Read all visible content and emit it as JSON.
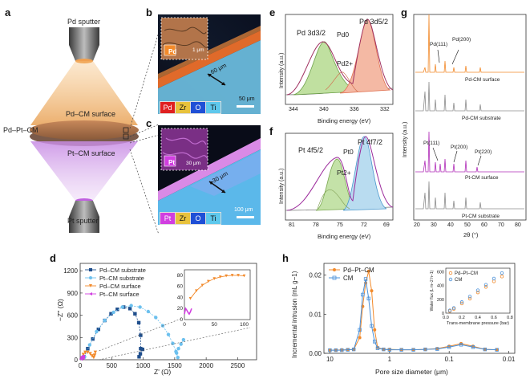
{
  "colors": {
    "pd_orange": "#f28a2b",
    "pt_purple": "#d13ee0",
    "zr_yellow": "#e8c23c",
    "o_blue": "#1f4fd6",
    "ti_cyan": "#5ec8ec",
    "dark_navy": "#1f4e8c",
    "light_blue": "#6cc0ee",
    "pd_xps_green": "#9acf79",
    "pd_xps_red": "#f0a48a",
    "gray": "#8c8c8c"
  },
  "panel_a": {
    "letter": "a",
    "top_label": "Pd sputter",
    "middle_surface_label": "Pd–CM surface",
    "left_label": "Pd–Pt–CM",
    "bottom_surface_label": "Pt–CM surface",
    "bottom_label": "Pt sputter"
  },
  "panel_b": {
    "letter": "b",
    "inset_scale": "1 μm",
    "inset_element": "Pd",
    "thickness": "60 μm",
    "scale": "50 μm",
    "elements": [
      "Pd",
      "Zr",
      "O",
      "Ti"
    ]
  },
  "panel_c": {
    "letter": "c",
    "inset_scale": "30 μm",
    "inset_element": "Pt",
    "thickness": "30 μm",
    "scale": "100 μm",
    "elements": [
      "Pt",
      "Zr",
      "O",
      "Ti"
    ]
  },
  "chart_data": [
    {
      "id": "d",
      "type": "scatter",
      "letter": "d",
      "xlabel": "Z' (Ω)",
      "ylabel": "−Z'' (Ω)",
      "xlim": [
        0,
        2800
      ],
      "ylim": [
        0,
        1300
      ],
      "xticks": [
        0,
        500,
        1000,
        1500,
        2000,
        2500
      ],
      "yticks": [
        0,
        300,
        600,
        900,
        1200
      ],
      "legend": [
        "Pd–CM substrate",
        "Pt–CM substrate",
        "Pd–CM surface",
        "Pt–CM surface"
      ],
      "series": [
        {
          "name": "Pd–CM substrate",
          "color": "#1f4e8c",
          "shape": "square",
          "x": [
            60,
            120,
            200,
            290,
            390,
            490,
            590,
            690,
            790,
            870,
            930,
            960,
            960,
            935,
            955,
            990
          ],
          "y": [
            40,
            150,
            280,
            410,
            530,
            620,
            680,
            710,
            690,
            620,
            500,
            330,
            150,
            40,
            80,
            140
          ]
        },
        {
          "name": "Pt–CM substrate",
          "color": "#6cc0ee",
          "shape": "circle",
          "x": [
            70,
            150,
            260,
            390,
            530,
            670,
            810,
            950,
            1080,
            1200,
            1310,
            1400,
            1470,
            1520,
            1550,
            1530,
            1560,
            1600,
            1640
          ],
          "y": [
            40,
            200,
            380,
            530,
            640,
            710,
            730,
            710,
            650,
            570,
            460,
            340,
            220,
            110,
            30,
            90,
            150,
            210,
            270
          ]
        },
        {
          "name": "Pd–CM surface",
          "color": "#f28a2b",
          "shape": "triangle-down",
          "x": [
            30,
            50,
            80,
            120,
            160,
            190,
            215,
            230,
            240
          ],
          "y": [
            20,
            70,
            100,
            100,
            80,
            50,
            30,
            60,
            100
          ]
        },
        {
          "name": "Pt–CM surface",
          "color": "#d13ee0",
          "shape": "triangle-left",
          "x": [
            10,
            20,
            30,
            40,
            45,
            50
          ],
          "y": [
            10,
            30,
            45,
            35,
            20,
            45
          ]
        }
      ],
      "inset": {
        "xlim": [
          0,
          110
        ],
        "ylim": [
          0,
          90
        ],
        "xticks": [
          0,
          50,
          100
        ],
        "yticks": [
          0,
          20,
          40,
          60,
          80
        ],
        "orange_x": [
          10,
          20,
          30,
          40,
          50,
          60,
          70,
          80,
          90,
          100
        ],
        "orange_y": [
          38,
          52,
          62,
          69,
          74,
          77,
          79,
          80,
          80,
          79
        ],
        "purple_x": [
          0,
          2,
          4,
          6,
          8,
          10,
          12
        ],
        "purple_y": [
          10,
          20,
          17,
          13,
          10,
          14,
          20
        ]
      }
    },
    {
      "id": "e",
      "type": "line",
      "letter": "e",
      "xlabel": "Binding energy (eV)",
      "ylabel": "Intensity (a.u.)",
      "xlim": [
        346,
        332
      ],
      "xticks": [
        344,
        340,
        336,
        332
      ],
      "annotations": [
        "Pd 3d3/2",
        "Pd 3d5/2",
        "Pd0",
        "Pd2+"
      ]
    },
    {
      "id": "f",
      "type": "line",
      "letter": "f",
      "xlabel": "Binding energy (eV)",
      "ylabel": "Intensity (a.u.)",
      "xlim": [
        82,
        69
      ],
      "xticks": [
        81,
        78,
        75,
        72,
        69
      ],
      "annotations": [
        "Pt 4f5/2",
        "Pt 4f7/2",
        "Pt0",
        "Pt2+"
      ]
    },
    {
      "id": "g",
      "type": "line",
      "letter": "g",
      "xlabel": "2θ (°)",
      "ylabel": "Intensity (a.u.)",
      "xlim": [
        18,
        82
      ],
      "xticks": [
        20,
        30,
        40,
        50,
        60,
        70,
        80
      ],
      "traces": [
        "Pd-CM surface",
        "Pd-CM substrate",
        "Pt-CM surface",
        "Pt-CM substrate"
      ],
      "annotations": [
        "Pd(111)",
        "Pd(200)",
        "Pt(111)",
        "Pt(200)",
        "Pt(220)"
      ]
    },
    {
      "id": "h",
      "type": "line",
      "letter": "h",
      "xlabel": "Pore size diameter (μm)",
      "ylabel": "Incremental intrusion (mL g−1)",
      "xscale": "log-reversed",
      "xticks": [
        "10",
        "1",
        "0.1",
        "0.01"
      ],
      "yticks": [
        0.0,
        0.01,
        0.02
      ],
      "ylim": [
        0,
        0.023
      ],
      "legend": [
        "Pd–Pt–CM",
        "CM"
      ],
      "series": [
        {
          "name": "Pd–Pt–CM",
          "color": "#f28a2b",
          "logx": [
            1.0,
            0.9,
            0.8,
            0.7,
            0.6,
            0.5,
            0.45,
            0.4,
            0.35,
            0.3,
            0.25,
            0.2,
            0.1,
            0.0,
            -0.2,
            -0.4,
            -0.6,
            -0.8,
            -1.0,
            -1.2,
            -1.4,
            -1.6,
            -1.8
          ],
          "y": [
            0.0008,
            0.0008,
            0.0009,
            0.0009,
            0.001,
            0.004,
            0.012,
            0.018,
            0.021,
            0.016,
            0.006,
            0.0015,
            0.001,
            0.001,
            0.0009,
            0.0009,
            0.001,
            0.0012,
            0.0018,
            0.0025,
            0.0018,
            0.001,
            0.0009
          ]
        },
        {
          "name": "CM",
          "color": "#4a90d9",
          "logx": [
            1.0,
            0.9,
            0.8,
            0.7,
            0.6,
            0.5,
            0.45,
            0.4,
            0.35,
            0.3,
            0.25,
            0.2,
            0.1,
            0.0,
            -0.2,
            -0.4,
            -0.6,
            -0.8,
            -1.0,
            -1.2,
            -1.4,
            -1.6,
            -1.8
          ],
          "y": [
            0.0008,
            0.0008,
            0.0008,
            0.0009,
            0.001,
            0.006,
            0.015,
            0.019,
            0.014,
            0.007,
            0.003,
            0.0013,
            0.001,
            0.0009,
            0.0009,
            0.0009,
            0.001,
            0.0011,
            0.0016,
            0.0022,
            0.0016,
            0.001,
            0.0009
          ]
        }
      ],
      "inset": {
        "xlabel": "Trans-membrane pressure (bar)",
        "ylabel": "Water flux (L m−2 h−1)",
        "xticks": [
          0.0,
          0.2,
          0.4,
          0.6,
          0.8
        ],
        "yticks": [
          0,
          200,
          400,
          600
        ],
        "legend": [
          "Pd–Pt–CM",
          "CM"
        ],
        "x": [
          0.05,
          0.1,
          0.2,
          0.3,
          0.4,
          0.5,
          0.6,
          0.7
        ],
        "y1": [
          30,
          60,
          140,
          210,
          300,
          380,
          460,
          530
        ],
        "y2": [
          40,
          75,
          160,
          240,
          330,
          410,
          500,
          580
        ]
      }
    }
  ]
}
